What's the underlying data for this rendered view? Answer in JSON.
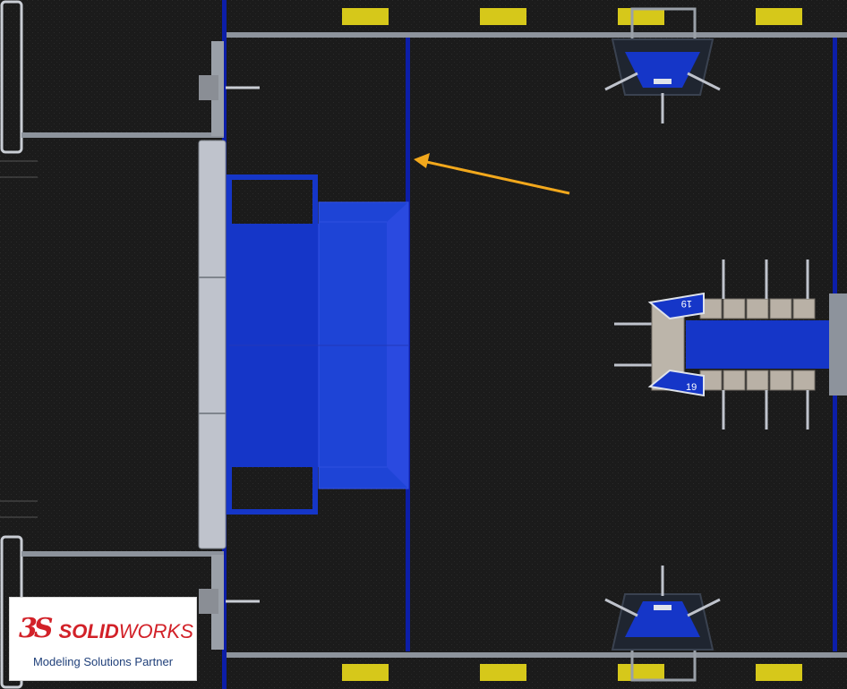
{
  "colors": {
    "carpet": "#1a1a1a",
    "tape_blue": "#0c1ea8",
    "platform_blue": "#1536c8",
    "platform_edge": "#2a4ae0",
    "rail_gray": "#8d939c",
    "panel_light": "#bfc3cc",
    "yellow_pad": "#d6c81a",
    "arrow_orange": "#f2a81c",
    "tan_block": "#b9b1a6",
    "logo_red": "#d22128",
    "logo_blue": "#20407a"
  },
  "field_elements": {
    "robot_number_top": "19",
    "robot_number_bottom": "19"
  },
  "logo": {
    "mark": "3S",
    "brand_part1": "SOLID",
    "brand_part2": "WORKS",
    "tagline": "Modeling Solutions Partner"
  }
}
